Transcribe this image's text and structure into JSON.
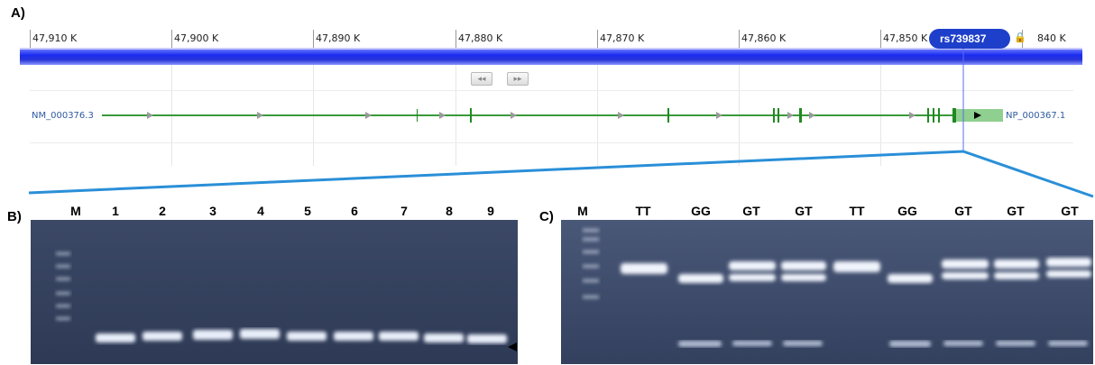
{
  "panels": {
    "a": "A)",
    "b": "B)",
    "c": "C)"
  },
  "ruler": {
    "ticks": [
      "47,910 K",
      "47,900 K",
      "47,890 K",
      "47,880 K",
      "47,870 K",
      "47,860 K",
      "47,850 K"
    ],
    "last_tick": "840 K"
  },
  "snp": {
    "label": "rs739837",
    "lock_icon": "lock-icon"
  },
  "nav": {
    "prev": "◂◂",
    "next": "▸▸"
  },
  "gene": {
    "left_accession": "NM_000376.3",
    "right_accession": "NP_000367.1"
  },
  "gel_b": {
    "lanes": [
      "M",
      "1",
      "2",
      "3",
      "4",
      "5",
      "6",
      "7",
      "8",
      "9"
    ],
    "arrow_icon": "triangle-left-icon"
  },
  "gel_c": {
    "lanes": [
      "M",
      "TT",
      "GG",
      "GT",
      "GT",
      "TT",
      "GG",
      "GT",
      "GT",
      "GT"
    ]
  },
  "colors": {
    "track": "#2233ee",
    "gene_line": "#3a9a3a",
    "connector": "#2a8fd8",
    "gel_bg": "#3d4a66"
  }
}
